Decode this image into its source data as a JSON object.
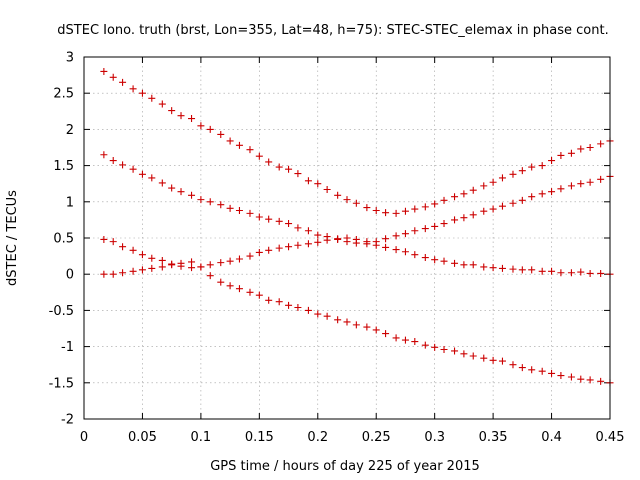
{
  "chart_data": {
    "type": "scatter",
    "title": "dSTEC Iono. truth (brst, Lon=355, Lat=48, h=75): STEC-STEC_elemax in phase cont.",
    "xlabel": "GPS time / hours of day 225 of year 2015",
    "ylabel": "dSTEC  / TECUs",
    "xlim": [
      0,
      0.45
    ],
    "ylim": [
      -2,
      3
    ],
    "xticks": [
      "0",
      "0.05",
      "0.1",
      "0.15",
      "0.2",
      "0.25",
      "0.3",
      "0.35",
      "0.4",
      "0.45"
    ],
    "yticks": [
      "3",
      "2.5",
      "2",
      "1.5",
      "1",
      "0.5",
      "0",
      "-0.5",
      "-1",
      "-1.5",
      "-2"
    ],
    "grid": true,
    "marker": "+",
    "color": "#cc0000",
    "series": [
      {
        "x": [
          0.017,
          0.025,
          0.033,
          0.042,
          0.05,
          0.058,
          0.067,
          0.075,
          0.083,
          0.092,
          0.1,
          0.108,
          0.117,
          0.125,
          0.133,
          0.142,
          0.15,
          0.158,
          0.167,
          0.175,
          0.183,
          0.192,
          0.2,
          0.208,
          0.217,
          0.225,
          0.233,
          0.242,
          0.25,
          0.258,
          0.267,
          0.275,
          0.283,
          0.292,
          0.3,
          0.308,
          0.317,
          0.325,
          0.333,
          0.342,
          0.35,
          0.358,
          0.367,
          0.375,
          0.383,
          0.392,
          0.4,
          0.408,
          0.417,
          0.425,
          0.433,
          0.442,
          0.45
        ],
        "y": [
          2.8,
          2.72,
          2.65,
          2.56,
          2.5,
          2.43,
          2.35,
          2.26,
          2.19,
          2.15,
          2.05,
          2.0,
          1.93,
          1.84,
          1.78,
          1.72,
          1.63,
          1.55,
          1.48,
          1.45,
          1.39,
          1.29,
          1.25,
          1.17,
          1.09,
          1.03,
          0.98,
          0.92,
          0.88,
          0.85,
          0.84,
          0.87,
          0.9,
          0.93,
          0.97,
          1.02,
          1.07,
          1.11,
          1.16,
          1.22,
          1.27,
          1.33,
          1.38,
          1.43,
          1.48,
          1.5,
          1.57,
          1.64,
          1.67,
          1.73,
          1.75,
          1.8,
          1.84
        ]
      },
      {
        "x": [
          0.017,
          0.025,
          0.033,
          0.042,
          0.05,
          0.058,
          0.067,
          0.075,
          0.083,
          0.092,
          0.1,
          0.108,
          0.117,
          0.125,
          0.133,
          0.142,
          0.15,
          0.158,
          0.167,
          0.175,
          0.183,
          0.192,
          0.2,
          0.208,
          0.217,
          0.225,
          0.233,
          0.242,
          0.25,
          0.258,
          0.267,
          0.275,
          0.283,
          0.292,
          0.3,
          0.308,
          0.317,
          0.325,
          0.333,
          0.342,
          0.35,
          0.358,
          0.367,
          0.375,
          0.383,
          0.392,
          0.4,
          0.408,
          0.417,
          0.425,
          0.433,
          0.442,
          0.45
        ],
        "y": [
          1.65,
          1.57,
          1.51,
          1.45,
          1.38,
          1.33,
          1.26,
          1.19,
          1.14,
          1.09,
          1.03,
          1.0,
          0.96,
          0.91,
          0.88,
          0.84,
          0.79,
          0.76,
          0.73,
          0.7,
          0.64,
          0.6,
          0.54,
          0.52,
          0.48,
          0.45,
          0.43,
          0.42,
          0.45,
          0.49,
          0.53,
          0.56,
          0.6,
          0.63,
          0.66,
          0.7,
          0.75,
          0.78,
          0.82,
          0.87,
          0.9,
          0.94,
          0.98,
          1.02,
          1.07,
          1.11,
          1.14,
          1.18,
          1.22,
          1.25,
          1.27,
          1.31,
          1.35
        ]
      },
      {
        "x": [
          0.017,
          0.025,
          0.033,
          0.042,
          0.05,
          0.058,
          0.067,
          0.075,
          0.083,
          0.092,
          0.1,
          0.108,
          0.117,
          0.125,
          0.133,
          0.142,
          0.15,
          0.158,
          0.167,
          0.175,
          0.183,
          0.192,
          0.2,
          0.208,
          0.217,
          0.225,
          0.233,
          0.242,
          0.25,
          0.258,
          0.267,
          0.275,
          0.283,
          0.292,
          0.3,
          0.308,
          0.317,
          0.325,
          0.333,
          0.342,
          0.35,
          0.358,
          0.367,
          0.375,
          0.383,
          0.392,
          0.4,
          0.408,
          0.417,
          0.425,
          0.433,
          0.442,
          0.45
        ],
        "y": [
          0.48,
          0.45,
          0.38,
          0.33,
          0.27,
          0.22,
          0.19,
          0.13,
          0.11,
          0.09,
          0.1,
          0.13,
          0.16,
          0.18,
          0.21,
          0.25,
          0.3,
          0.33,
          0.36,
          0.38,
          0.4,
          0.42,
          0.44,
          0.47,
          0.49,
          0.5,
          0.48,
          0.45,
          0.4,
          0.37,
          0.34,
          0.31,
          0.27,
          0.23,
          0.2,
          0.18,
          0.15,
          0.13,
          0.13,
          0.1,
          0.09,
          0.08,
          0.07,
          0.06,
          0.06,
          0.04,
          0.04,
          0.02,
          0.02,
          0.03,
          0.01,
          0.01,
          0.0
        ]
      },
      {
        "x": [
          0.017,
          0.025,
          0.033,
          0.042,
          0.05,
          0.058,
          0.067,
          0.075,
          0.083,
          0.092,
          0.1,
          0.108,
          0.117,
          0.125,
          0.133,
          0.142,
          0.15,
          0.158,
          0.167,
          0.175,
          0.183,
          0.192,
          0.2,
          0.208,
          0.217,
          0.225,
          0.233,
          0.242,
          0.25,
          0.258,
          0.267,
          0.275,
          0.283,
          0.292,
          0.3,
          0.308,
          0.317,
          0.325,
          0.333,
          0.342,
          0.35,
          0.358,
          0.367,
          0.375,
          0.383,
          0.392,
          0.4,
          0.408,
          0.417,
          0.425,
          0.433,
          0.442,
          0.45
        ],
        "y": [
          0.0,
          0.0,
          0.02,
          0.04,
          0.06,
          0.08,
          0.1,
          0.14,
          0.15,
          0.17,
          0.1,
          -0.02,
          -0.11,
          -0.16,
          -0.2,
          -0.25,
          -0.29,
          -0.36,
          -0.38,
          -0.43,
          -0.46,
          -0.5,
          -0.55,
          -0.58,
          -0.63,
          -0.66,
          -0.7,
          -0.73,
          -0.77,
          -0.82,
          -0.88,
          -0.91,
          -0.93,
          -0.98,
          -1.01,
          -1.04,
          -1.06,
          -1.1,
          -1.13,
          -1.16,
          -1.19,
          -1.2,
          -1.25,
          -1.29,
          -1.32,
          -1.34,
          -1.37,
          -1.4,
          -1.42,
          -1.45,
          -1.46,
          -1.48,
          -1.5
        ]
      }
    ]
  }
}
